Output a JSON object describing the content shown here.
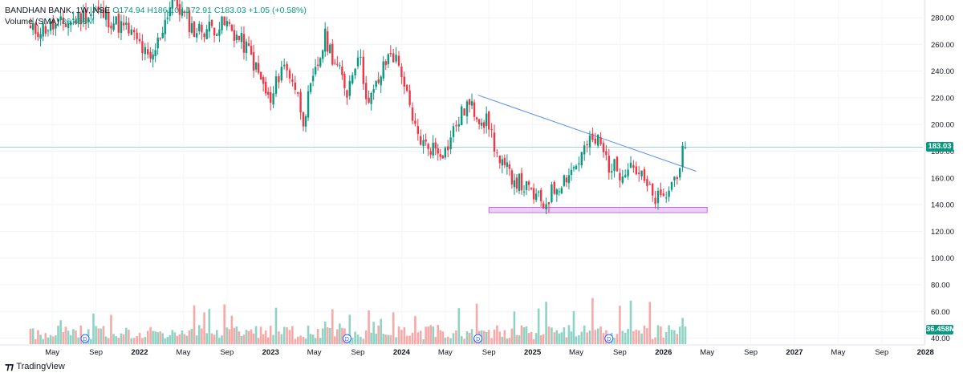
{
  "header": {
    "symbol": "BANDHAN BANK, 1W, NSE",
    "ohlc": "O174.94 H186.10 L172.91 C183.03 +1.05 (+0.58%)",
    "volume_label": "Volume (SMA)",
    "volume_value": "36.458M"
  },
  "footer": {
    "brand": "TradingView"
  },
  "price_tag": {
    "value": "183.03",
    "color": "#089981"
  },
  "volume_tag": {
    "value": "36.458M",
    "color": "#089981"
  },
  "colors": {
    "up": "#089981",
    "down": "#f23645",
    "vol_up": "#8fd3c4",
    "vol_down": "#f7a9a7",
    "trendline": "#5b8def",
    "support_zone": "#e1a8f0",
    "price_line": "#9ed8cf"
  },
  "chart_data": {
    "type": "candlestick",
    "y_axis": {
      "ticks": [
        280,
        260,
        240,
        220,
        200,
        180,
        160,
        140,
        120,
        100,
        80,
        60,
        40
      ],
      "labels": [
        "280.00",
        "260.00",
        "240.00",
        "220.00",
        "200.00",
        "180.00",
        "160.00",
        "140.00",
        "120.00",
        "100.00",
        "80.00",
        "60.00",
        "40.00"
      ]
    },
    "x_axis": {
      "labels": [
        "May",
        "Sep",
        "2022",
        "May",
        "Sep",
        "2023",
        "May",
        "Sep",
        "2024",
        "May",
        "Sep",
        "2025",
        "May",
        "Sep",
        "2026",
        "May",
        "Sep",
        "2027",
        "May",
        "Sep",
        "2028"
      ]
    },
    "last_close": 183.03,
    "trendline": {
      "from": {
        "date": "2024-08",
        "price": 222
      },
      "to": {
        "date": "2026-04",
        "price": 165
      }
    },
    "support_zone": {
      "from": "2024-09",
      "to": "2026-05",
      "low": 134,
      "high": 138
    },
    "dividend_markers": [
      "2021-08",
      "2023-08",
      "2024-08",
      "2025-08"
    ],
    "dividend_marker_label": "D",
    "series_anchors": [
      {
        "date": "2021-03",
        "price": 270
      },
      {
        "date": "2021-06",
        "price": 275
      },
      {
        "date": "2021-09",
        "price": 285
      },
      {
        "date": "2021-12",
        "price": 270
      },
      {
        "date": "2022-01",
        "price": 260
      },
      {
        "date": "2022-02",
        "price": 245
      },
      {
        "date": "2022-04",
        "price": 295
      },
      {
        "date": "2022-06",
        "price": 270
      },
      {
        "date": "2022-09",
        "price": 275
      },
      {
        "date": "2022-11",
        "price": 255
      },
      {
        "date": "2023-01",
        "price": 215
      },
      {
        "date": "2023-02",
        "price": 245
      },
      {
        "date": "2023-03",
        "price": 235
      },
      {
        "date": "2023-04",
        "price": 205
      },
      {
        "date": "2023-06",
        "price": 265
      },
      {
        "date": "2023-08",
        "price": 225
      },
      {
        "date": "2023-09",
        "price": 255
      },
      {
        "date": "2023-10",
        "price": 215
      },
      {
        "date": "2023-12",
        "price": 255
      },
      {
        "date": "2024-01",
        "price": 240
      },
      {
        "date": "2024-02",
        "price": 200
      },
      {
        "date": "2024-03",
        "price": 185
      },
      {
        "date": "2024-05",
        "price": 180
      },
      {
        "date": "2024-06",
        "price": 200
      },
      {
        "date": "2024-07",
        "price": 215
      },
      {
        "date": "2024-09",
        "price": 200
      },
      {
        "date": "2024-10",
        "price": 170
      },
      {
        "date": "2024-12",
        "price": 155
      },
      {
        "date": "2025-02",
        "price": 140
      },
      {
        "date": "2025-03",
        "price": 152
      },
      {
        "date": "2025-05",
        "price": 170
      },
      {
        "date": "2025-06",
        "price": 185
      },
      {
        "date": "2025-07",
        "price": 188
      },
      {
        "date": "2025-08",
        "price": 170
      },
      {
        "date": "2025-09",
        "price": 165
      },
      {
        "date": "2025-10",
        "price": 172
      },
      {
        "date": "2025-11",
        "price": 160
      },
      {
        "date": "2025-12",
        "price": 145
      },
      {
        "date": "2026-01",
        "price": 143
      },
      {
        "date": "2026-02",
        "price": 160
      },
      {
        "date": "2026-03",
        "price": 183
      }
    ]
  }
}
